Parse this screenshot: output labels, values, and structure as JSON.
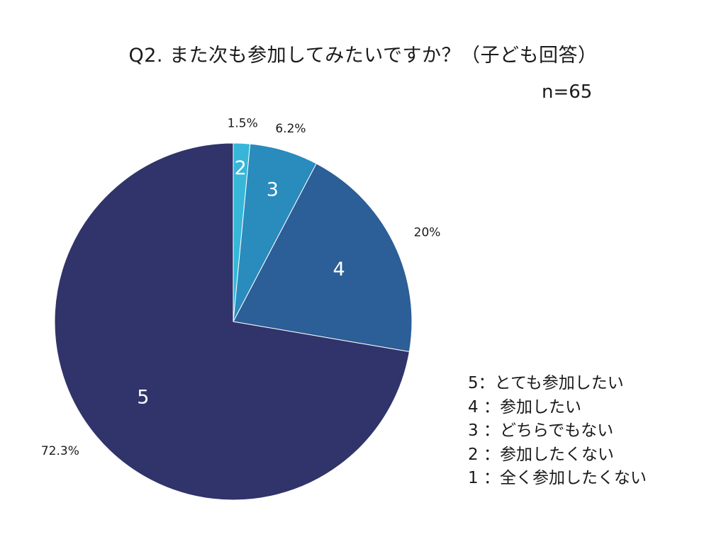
{
  "chart_data": {
    "type": "pie",
    "title": "Q2. また次も参加してみたいですか？（子ども回答）",
    "n_label": "n=65",
    "slices": [
      {
        "label": "2",
        "pct_label": "1.5%",
        "value": 1.5,
        "color": "#37b6d8"
      },
      {
        "label": "3",
        "pct_label": "6.2%",
        "value": 6.2,
        "color": "#2a8bbd"
      },
      {
        "label": "4",
        "pct_label": "20%",
        "value": 20,
        "color": "#2c5e97"
      },
      {
        "label": "5",
        "pct_label": "72.3%",
        "value": 72.3,
        "color": "#30346a"
      }
    ],
    "legend": [
      "5：とても参加したい",
      "4 ：参加したい",
      "3 ：どちらでもない",
      "2 ：参加したくない",
      "1 ：全く参加したくない"
    ]
  }
}
